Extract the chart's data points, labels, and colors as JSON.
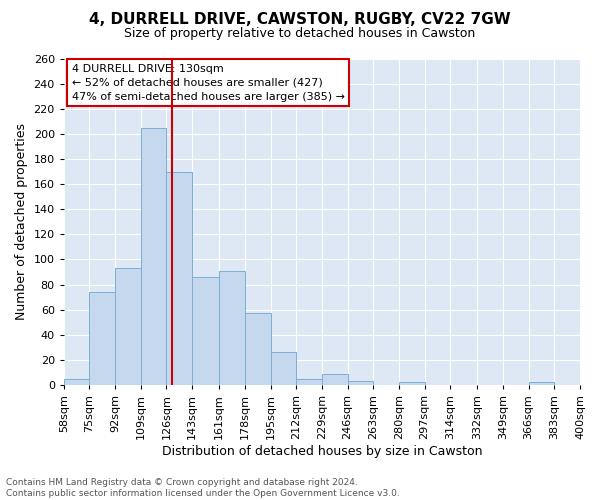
{
  "title1": "4, DURRELL DRIVE, CAWSTON, RUGBY, CV22 7GW",
  "title2": "Size of property relative to detached houses in Cawston",
  "xlabel": "Distribution of detached houses by size in Cawston",
  "ylabel": "Number of detached properties",
  "footnote1": "Contains HM Land Registry data © Crown copyright and database right 2024.",
  "footnote2": "Contains public sector information licensed under the Open Government Licence v3.0.",
  "annotation_line1": "4 DURRELL DRIVE: 130sqm",
  "annotation_line2": "← 52% of detached houses are smaller (427)",
  "annotation_line3": "47% of semi-detached houses are larger (385) →",
  "bin_edges": [
    58,
    75,
    92,
    109,
    126,
    143,
    161,
    178,
    195,
    212,
    229,
    246,
    263,
    280,
    297,
    314,
    332,
    349,
    366,
    383,
    400
  ],
  "counts": [
    5,
    74,
    93,
    205,
    170,
    86,
    91,
    57,
    26,
    5,
    9,
    3,
    0,
    2,
    0,
    0,
    0,
    0,
    2,
    0
  ],
  "bar_color": "#c5d8ee",
  "bar_edge_color": "#7aafd4",
  "vline_color": "#cc0000",
  "vline_x": 130,
  "bg_color": "#dde8f4",
  "grid_color": "#ffffff",
  "annotation_box_color": "#cc0000",
  "annotation_box_fill": "#ffffff",
  "ylim": [
    0,
    260
  ],
  "yticks": [
    0,
    20,
    40,
    60,
    80,
    100,
    120,
    140,
    160,
    180,
    200,
    220,
    240,
    260
  ],
  "title1_fontsize": 11,
  "title2_fontsize": 9,
  "xlabel_fontsize": 9,
  "ylabel_fontsize": 9,
  "tick_fontsize": 8,
  "footnote_fontsize": 6.5,
  "ann_fontsize": 8
}
